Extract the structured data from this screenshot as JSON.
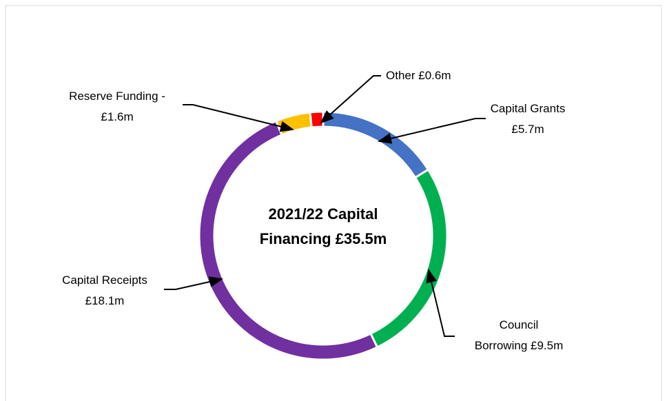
{
  "chart_data": {
    "type": "donut",
    "title": "2021/22 Capital Financing £35.5m",
    "categories": [
      "Capital Grants",
      "Council Borrowing",
      "Capital Receipts",
      "Reserve Funding -",
      "Other"
    ],
    "values": [
      5.7,
      9.5,
      18.1,
      1.6,
      0.6
    ],
    "value_labels": [
      "£5.7m",
      "£9.5m",
      "£18.1m",
      "£1.6m",
      "£0.6m"
    ],
    "colors": [
      "#4472c4",
      "#00b050",
      "#7030a0",
      "#ffc000",
      "#ff0000"
    ]
  }
}
